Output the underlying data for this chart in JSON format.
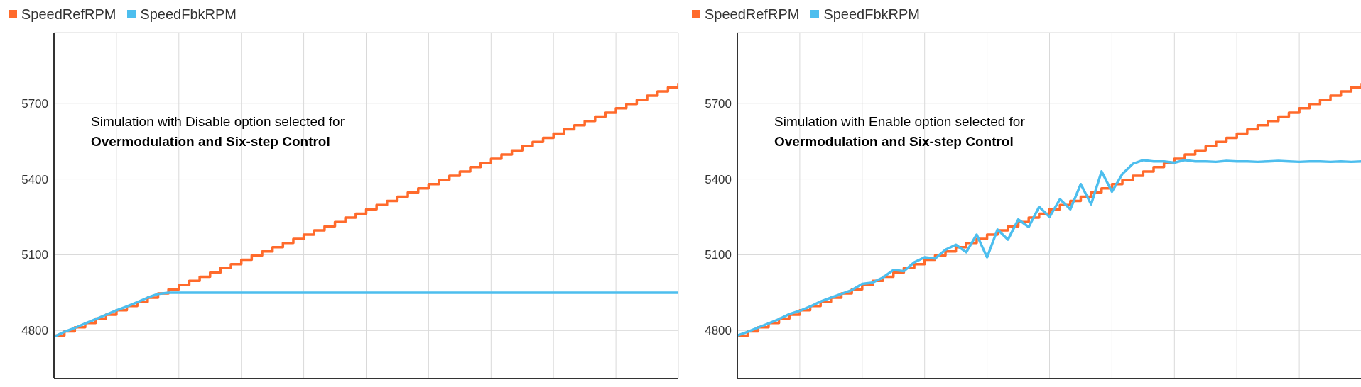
{
  "chart_data": [
    {
      "type": "line",
      "categories": [
        null,
        null,
        null,
        null,
        null,
        null,
        null,
        null,
        null,
        null,
        null,
        null,
        null,
        null,
        null,
        null,
        null,
        null,
        null,
        null,
        null,
        null,
        null,
        null,
        null,
        null,
        null,
        null,
        null,
        null,
        null,
        null,
        null,
        null,
        null,
        null,
        null,
        null,
        null,
        null,
        null,
        null,
        null,
        null,
        null,
        null,
        null,
        null,
        null,
        null,
        null,
        null,
        null,
        null,
        null,
        null,
        null,
        null,
        null,
        null,
        null
      ],
      "ylim": [
        4610,
        5980
      ],
      "yticks": [
        4800,
        5100,
        5400,
        5700
      ],
      "grid": true,
      "legend": "top left",
      "tick_labels": "y",
      "annotations": [
        "Simulation with Disable option selected for",
        "Overmodulation and Six-step Control"
      ],
      "series": [
        {
          "name": "SpeedRefRPM",
          "type": "step",
          "color": "#ff6a2b",
          "values": [
            4780,
            4797,
            4813,
            4830,
            4847,
            4863,
            4880,
            4897,
            4913,
            4930,
            4947,
            4963,
            4980,
            4997,
            5013,
            5030,
            5047,
            5063,
            5080,
            5097,
            5113,
            5130,
            5147,
            5163,
            5180,
            5197,
            5213,
            5230,
            5247,
            5263,
            5280,
            5297,
            5313,
            5330,
            5347,
            5363,
            5380,
            5397,
            5413,
            5430,
            5447,
            5463,
            5480,
            5497,
            5513,
            5530,
            5547,
            5563,
            5580,
            5597,
            5613,
            5630,
            5647,
            5663,
            5680,
            5697,
            5713,
            5730,
            5747,
            5763,
            5780
          ]
        },
        {
          "name": "SpeedFbkRPM",
          "type": "line",
          "color": "#4dbeee",
          "values": [
            4775,
            4795,
            4810,
            4828,
            4845,
            4862,
            4880,
            4895,
            4912,
            4930,
            4945,
            4950,
            4950,
            4950,
            4950,
            4950,
            4950,
            4950,
            4950,
            4950,
            4950,
            4950,
            4950,
            4950,
            4950,
            4950,
            4950,
            4950,
            4950,
            4950,
            4950,
            4950,
            4950,
            4950,
            4950,
            4950,
            4950,
            4950,
            4950,
            4950,
            4950,
            4950,
            4950,
            4950,
            4950,
            4950,
            4950,
            4950,
            4950,
            4950,
            4950,
            4950,
            4950,
            4950,
            4950,
            4950,
            4950,
            4950,
            4950,
            4950,
            4950
          ]
        }
      ]
    },
    {
      "type": "line",
      "categories": [
        null,
        null,
        null,
        null,
        null,
        null,
        null,
        null,
        null,
        null,
        null,
        null,
        null,
        null,
        null,
        null,
        null,
        null,
        null,
        null,
        null,
        null,
        null,
        null,
        null,
        null,
        null,
        null,
        null,
        null,
        null,
        null,
        null,
        null,
        null,
        null,
        null,
        null,
        null,
        null,
        null,
        null,
        null,
        null,
        null,
        null,
        null,
        null,
        null,
        null,
        null,
        null,
        null,
        null,
        null,
        null,
        null,
        null,
        null,
        null,
        null
      ],
      "ylim": [
        4610,
        5980
      ],
      "yticks": [
        4800,
        5100,
        5400,
        5700
      ],
      "grid": true,
      "legend": "top left",
      "tick_labels": "y",
      "annotations": [
        "Simulation with Enable option selected for",
        "Overmodulation and Six-step Control"
      ],
      "series": [
        {
          "name": "SpeedRefRPM",
          "type": "step",
          "color": "#ff6a2b",
          "values": [
            4780,
            4797,
            4813,
            4830,
            4847,
            4863,
            4880,
            4897,
            4913,
            4930,
            4947,
            4963,
            4980,
            4997,
            5013,
            5030,
            5047,
            5063,
            5080,
            5097,
            5113,
            5130,
            5147,
            5163,
            5180,
            5197,
            5213,
            5230,
            5247,
            5263,
            5280,
            5297,
            5313,
            5330,
            5347,
            5363,
            5380,
            5397,
            5413,
            5430,
            5447,
            5463,
            5480,
            5497,
            5513,
            5530,
            5547,
            5563,
            5580,
            5597,
            5613,
            5630,
            5647,
            5663,
            5680,
            5697,
            5713,
            5730,
            5747,
            5763,
            5780
          ]
        },
        {
          "name": "SpeedFbkRPM",
          "type": "line",
          "color": "#4dbeee",
          "values": [
            4780,
            4795,
            4812,
            4828,
            4845,
            4865,
            4878,
            4895,
            4915,
            4930,
            4945,
            4960,
            4985,
            4990,
            5010,
            5040,
            5035,
            5070,
            5090,
            5085,
            5120,
            5140,
            5110,
            5180,
            5090,
            5200,
            5160,
            5240,
            5210,
            5290,
            5250,
            5320,
            5280,
            5380,
            5300,
            5430,
            5350,
            5420,
            5460,
            5475,
            5470,
            5470,
            5465,
            5475,
            5470,
            5470,
            5468,
            5472,
            5470,
            5470,
            5468,
            5470,
            5472,
            5470,
            5468,
            5470,
            5470,
            5468,
            5470,
            5468,
            5470
          ]
        }
      ]
    }
  ]
}
